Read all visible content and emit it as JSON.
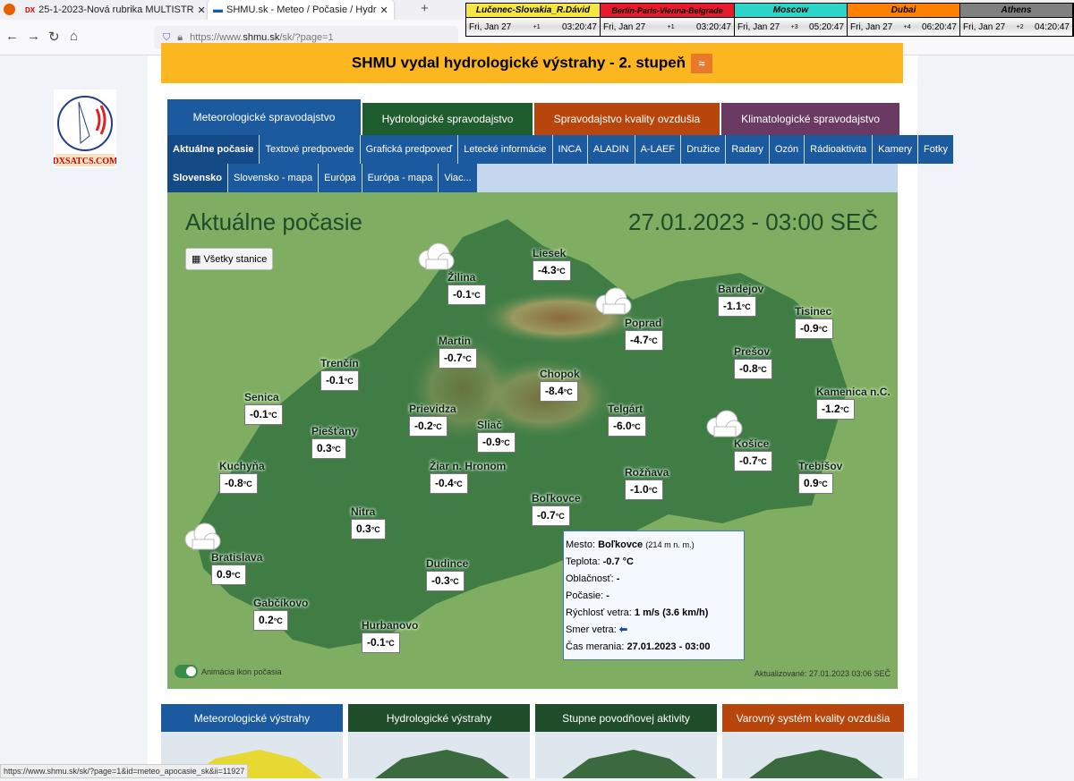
{
  "browser": {
    "tabs": [
      {
        "title": "25-1-2023-Nová rubrika MULTISTR"
      },
      {
        "title": "SHMU.sk - Meteo / Počasie / Hydr"
      }
    ],
    "url_prefix": "https://www.",
    "url_host": "shmu.sk",
    "url_path": "/sk/?page=1",
    "status_url": "https://www.shmu.sk/sk/?page=1&id=meteo_apocasie_sk&ii=11927"
  },
  "clocks": [
    {
      "city": "Lučenec-Slovakia_R.Dávid",
      "date": "Fri, Jan 27",
      "offset": "+1",
      "time": "03:20:47",
      "color": "#f5e642"
    },
    {
      "city": "Berlin-Paris-Vienna-Belgrade",
      "date": "Fri, Jan 27",
      "offset": "+1",
      "time": "03:20:47",
      "color": "#e8192c"
    },
    {
      "city": "Moscow",
      "date": "Fri, Jan 27",
      "offset": "+3",
      "time": "05:20:47",
      "color": "#2dd4c8"
    },
    {
      "city": "Dubai",
      "date": "Fri, Jan 27",
      "offset": "+4",
      "time": "06:20:47",
      "color": "#ff8000"
    },
    {
      "city": "Athens",
      "date": "Fri, Jan 27",
      "offset": "+2",
      "time": "04:20:47",
      "color": "#808080"
    }
  ],
  "logo_text": "DXSATCS.COM",
  "alert": "SHMU vydal hydrologické výstrahy - 2. stupeň",
  "main_tabs": [
    {
      "label": "Meteorologické spravodajstvo",
      "color": "#1c5aa0"
    },
    {
      "label": "Hydrologické spravodajstvo",
      "color": "#1f5c2e"
    },
    {
      "label": "Spravodajstvo kvality ovzdušia",
      "color": "#b8460c"
    },
    {
      "label": "Klimatologické spravodajstvo",
      "color": "#6b3a63"
    }
  ],
  "sub_tabs": [
    "Aktuálne počasie",
    "Textové predpovede",
    "Grafická predpoveď",
    "Letecké informácie",
    "INCA",
    "ALADIN",
    "A-LAEF",
    "Družice",
    "Radary",
    "Ozón",
    "Rádioaktivita",
    "Kamery",
    "Fotky"
  ],
  "region_tabs": [
    "Slovensko",
    "Slovensko - mapa",
    "Európa",
    "Európa - mapa",
    "Viac..."
  ],
  "map": {
    "title": "Aktuálne počasie",
    "datetime": "27.01.2023 - 03:00 SEČ",
    "all_stations": "Všetky stanice",
    "unit": "°C",
    "animation_label": "Animácia ikon počasia",
    "updated": "Aktualizované: 27.01.2023 03:06 SEČ",
    "stations": [
      {
        "name": "Žilina",
        "temp": "-0.1"
      },
      {
        "name": "Liesek",
        "temp": "-4.3"
      },
      {
        "name": "Bardejov",
        "temp": "-1.1"
      },
      {
        "name": "Tisinec",
        "temp": "-0.9"
      },
      {
        "name": "Poprad",
        "temp": "-4.7"
      },
      {
        "name": "Martin",
        "temp": "-0.7"
      },
      {
        "name": "Trenčín",
        "temp": "-0.1"
      },
      {
        "name": "Prešov",
        "temp": "-0.8"
      },
      {
        "name": "Chopok",
        "temp": "-8.4"
      },
      {
        "name": "Kamenica n.C.",
        "temp": "-1.2"
      },
      {
        "name": "Senica",
        "temp": "-0.1"
      },
      {
        "name": "Prievidza",
        "temp": "-0.2"
      },
      {
        "name": "Telgárt",
        "temp": "-6.0"
      },
      {
        "name": "Sliač",
        "temp": "-0.9"
      },
      {
        "name": "Piešťany",
        "temp": "0.3"
      },
      {
        "name": "Košice",
        "temp": "-0.7"
      },
      {
        "name": "Kuchyňa",
        "temp": "-0.8"
      },
      {
        "name": "Žiar n. Hronom",
        "temp": "-0.4"
      },
      {
        "name": "Trebišov",
        "temp": "0.9"
      },
      {
        "name": "Rožňava",
        "temp": "-1.0"
      },
      {
        "name": "Boľkovce",
        "temp": "-0.7"
      },
      {
        "name": "Nitra",
        "temp": "0.3"
      },
      {
        "name": "Bratislava",
        "temp": "0.9"
      },
      {
        "name": "Dudince",
        "temp": "-0.3"
      },
      {
        "name": "Gabčíkovo",
        "temp": "0.2"
      },
      {
        "name": "Hurbanovo",
        "temp": "-0.1"
      }
    ],
    "tooltip": {
      "city_label": "Mesto:",
      "city": "Boľkovce",
      "altitude": "(214 m n. m.)",
      "temp_label": "Teplota:",
      "temp": "-0.7 °C",
      "cloud_label": "Oblačnosť:",
      "cloud": "-",
      "weather_label": "Počasie:",
      "weather": "-",
      "wind_label": "Rýchlosť vetra:",
      "wind": "1 m/s (3.6 km/h)",
      "dir_label": "Smer vetra:",
      "dir_icon": "arrow-left",
      "time_label": "Čas merania:",
      "time": "27.01.2023 - 03:00"
    }
  },
  "bottom_tabs": [
    {
      "label": "Meteorologické výstrahy",
      "color": "#1c5aa0"
    },
    {
      "label": "Hydrologické výstrahy",
      "color": "#1f4d2a"
    },
    {
      "label": "Stupne povodňovej aktivity",
      "color": "#1f4d2a"
    },
    {
      "label": "Varovný systém kvality ovzdušia",
      "color": "#b8460c"
    }
  ]
}
